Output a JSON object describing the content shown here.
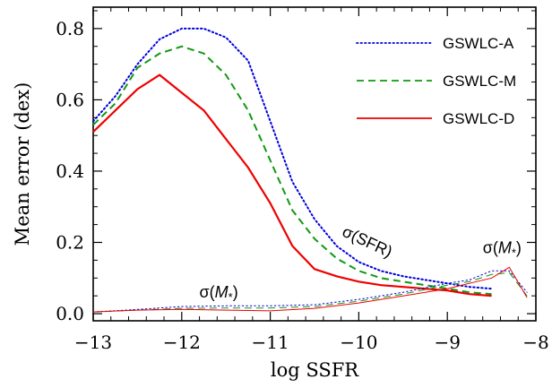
{
  "chart_data": {
    "type": "line",
    "xlabel": "log SSFR",
    "ylabel": "Mean error (dex)",
    "xlim": [
      -13,
      -8
    ],
    "ylim": [
      -0.02,
      0.86
    ],
    "x_ticks": [
      -13,
      -12,
      -11,
      -10,
      -9,
      -8
    ],
    "x_tick_labels": [
      "−13",
      "−12",
      "−11",
      "−10",
      "−9",
      "−8"
    ],
    "y_ticks": [
      0.0,
      0.2,
      0.4,
      0.6,
      0.8
    ],
    "y_tick_labels": [
      "0.0",
      "0.2",
      "0.4",
      "0.6",
      "0.8"
    ],
    "grid": false,
    "legend_position": "top-right",
    "annotations": [
      {
        "text": "σ(SFR)",
        "x": -10.2,
        "y": 0.22
      },
      {
        "text": "σ(M*)",
        "x": -11.8,
        "y": 0.045
      },
      {
        "text": "σ(M*)",
        "x": -8.6,
        "y": 0.17
      }
    ],
    "series": [
      {
        "name": "GSWLC-A",
        "group": "SFR",
        "color": "#0000dd",
        "dash": "dotted",
        "x": [
          -13,
          -12.75,
          -12.5,
          -12.25,
          -12.0,
          -11.75,
          -11.5,
          -11.25,
          -11.0,
          -10.75,
          -10.5,
          -10.25,
          -10.0,
          -9.75,
          -9.5,
          -9.25,
          -9.0,
          -8.75,
          -8.5
        ],
        "values": [
          0.54,
          0.61,
          0.7,
          0.77,
          0.8,
          0.8,
          0.775,
          0.71,
          0.54,
          0.37,
          0.265,
          0.19,
          0.145,
          0.12,
          0.105,
          0.095,
          0.085,
          0.075,
          0.07
        ]
      },
      {
        "name": "GSWLC-M",
        "group": "SFR",
        "color": "#119911",
        "dash": "dashed",
        "x": [
          -13,
          -12.75,
          -12.5,
          -12.25,
          -12.0,
          -11.75,
          -11.5,
          -11.25,
          -11.0,
          -10.75,
          -10.5,
          -10.25,
          -10.0,
          -9.75,
          -9.5,
          -9.25,
          -9.0,
          -8.75,
          -8.5
        ],
        "values": [
          0.53,
          0.59,
          0.69,
          0.73,
          0.75,
          0.73,
          0.67,
          0.57,
          0.43,
          0.29,
          0.21,
          0.155,
          0.12,
          0.1,
          0.09,
          0.08,
          0.07,
          0.06,
          0.055
        ]
      },
      {
        "name": "GSWLC-D",
        "group": "SFR",
        "color": "#ee0000",
        "dash": "solid",
        "x": [
          -13,
          -12.75,
          -12.5,
          -12.25,
          -12.0,
          -11.75,
          -11.5,
          -11.25,
          -11.0,
          -10.75,
          -10.5,
          -10.25,
          -10.0,
          -9.75,
          -9.5,
          -9.25,
          -9.0,
          -8.75,
          -8.5
        ],
        "values": [
          0.51,
          0.57,
          0.63,
          0.67,
          0.62,
          0.57,
          0.49,
          0.41,
          0.31,
          0.19,
          0.125,
          0.105,
          0.09,
          0.08,
          0.075,
          0.07,
          0.065,
          0.055,
          0.05
        ]
      },
      {
        "group": "Mstar",
        "color": "#0000dd",
        "dash": "dotted",
        "x": [
          -13,
          -12.5,
          -12.0,
          -11.5,
          -11.0,
          -10.5,
          -10.0,
          -9.5,
          -9.0,
          -8.75,
          -8.5,
          -8.3,
          -8.1
        ],
        "values": [
          0.005,
          0.012,
          0.02,
          0.022,
          0.022,
          0.025,
          0.04,
          0.06,
          0.085,
          0.095,
          0.12,
          0.12,
          0.06
        ]
      },
      {
        "group": "Mstar",
        "color": "#119911",
        "dash": "dashed",
        "x": [
          -13,
          -12.5,
          -12.0,
          -11.5,
          -11.0,
          -10.5,
          -10.0,
          -9.5,
          -9.0,
          -8.75,
          -8.5,
          -8.3,
          -8.1
        ],
        "values": [
          0.005,
          0.01,
          0.015,
          0.016,
          0.016,
          0.02,
          0.035,
          0.055,
          0.08,
          0.09,
          0.11,
          0.115,
          0.05
        ]
      },
      {
        "group": "Mstar",
        "color": "#ee0000",
        "dash": "solid",
        "x": [
          -13,
          -12.5,
          -12.0,
          -11.5,
          -11.0,
          -10.5,
          -10.0,
          -9.5,
          -9.0,
          -8.75,
          -8.5,
          -8.3,
          -8.1
        ],
        "values": [
          0.005,
          0.01,
          0.012,
          0.01,
          0.008,
          0.015,
          0.03,
          0.05,
          0.07,
          0.085,
          0.1,
          0.13,
          0.045
        ]
      }
    ]
  }
}
